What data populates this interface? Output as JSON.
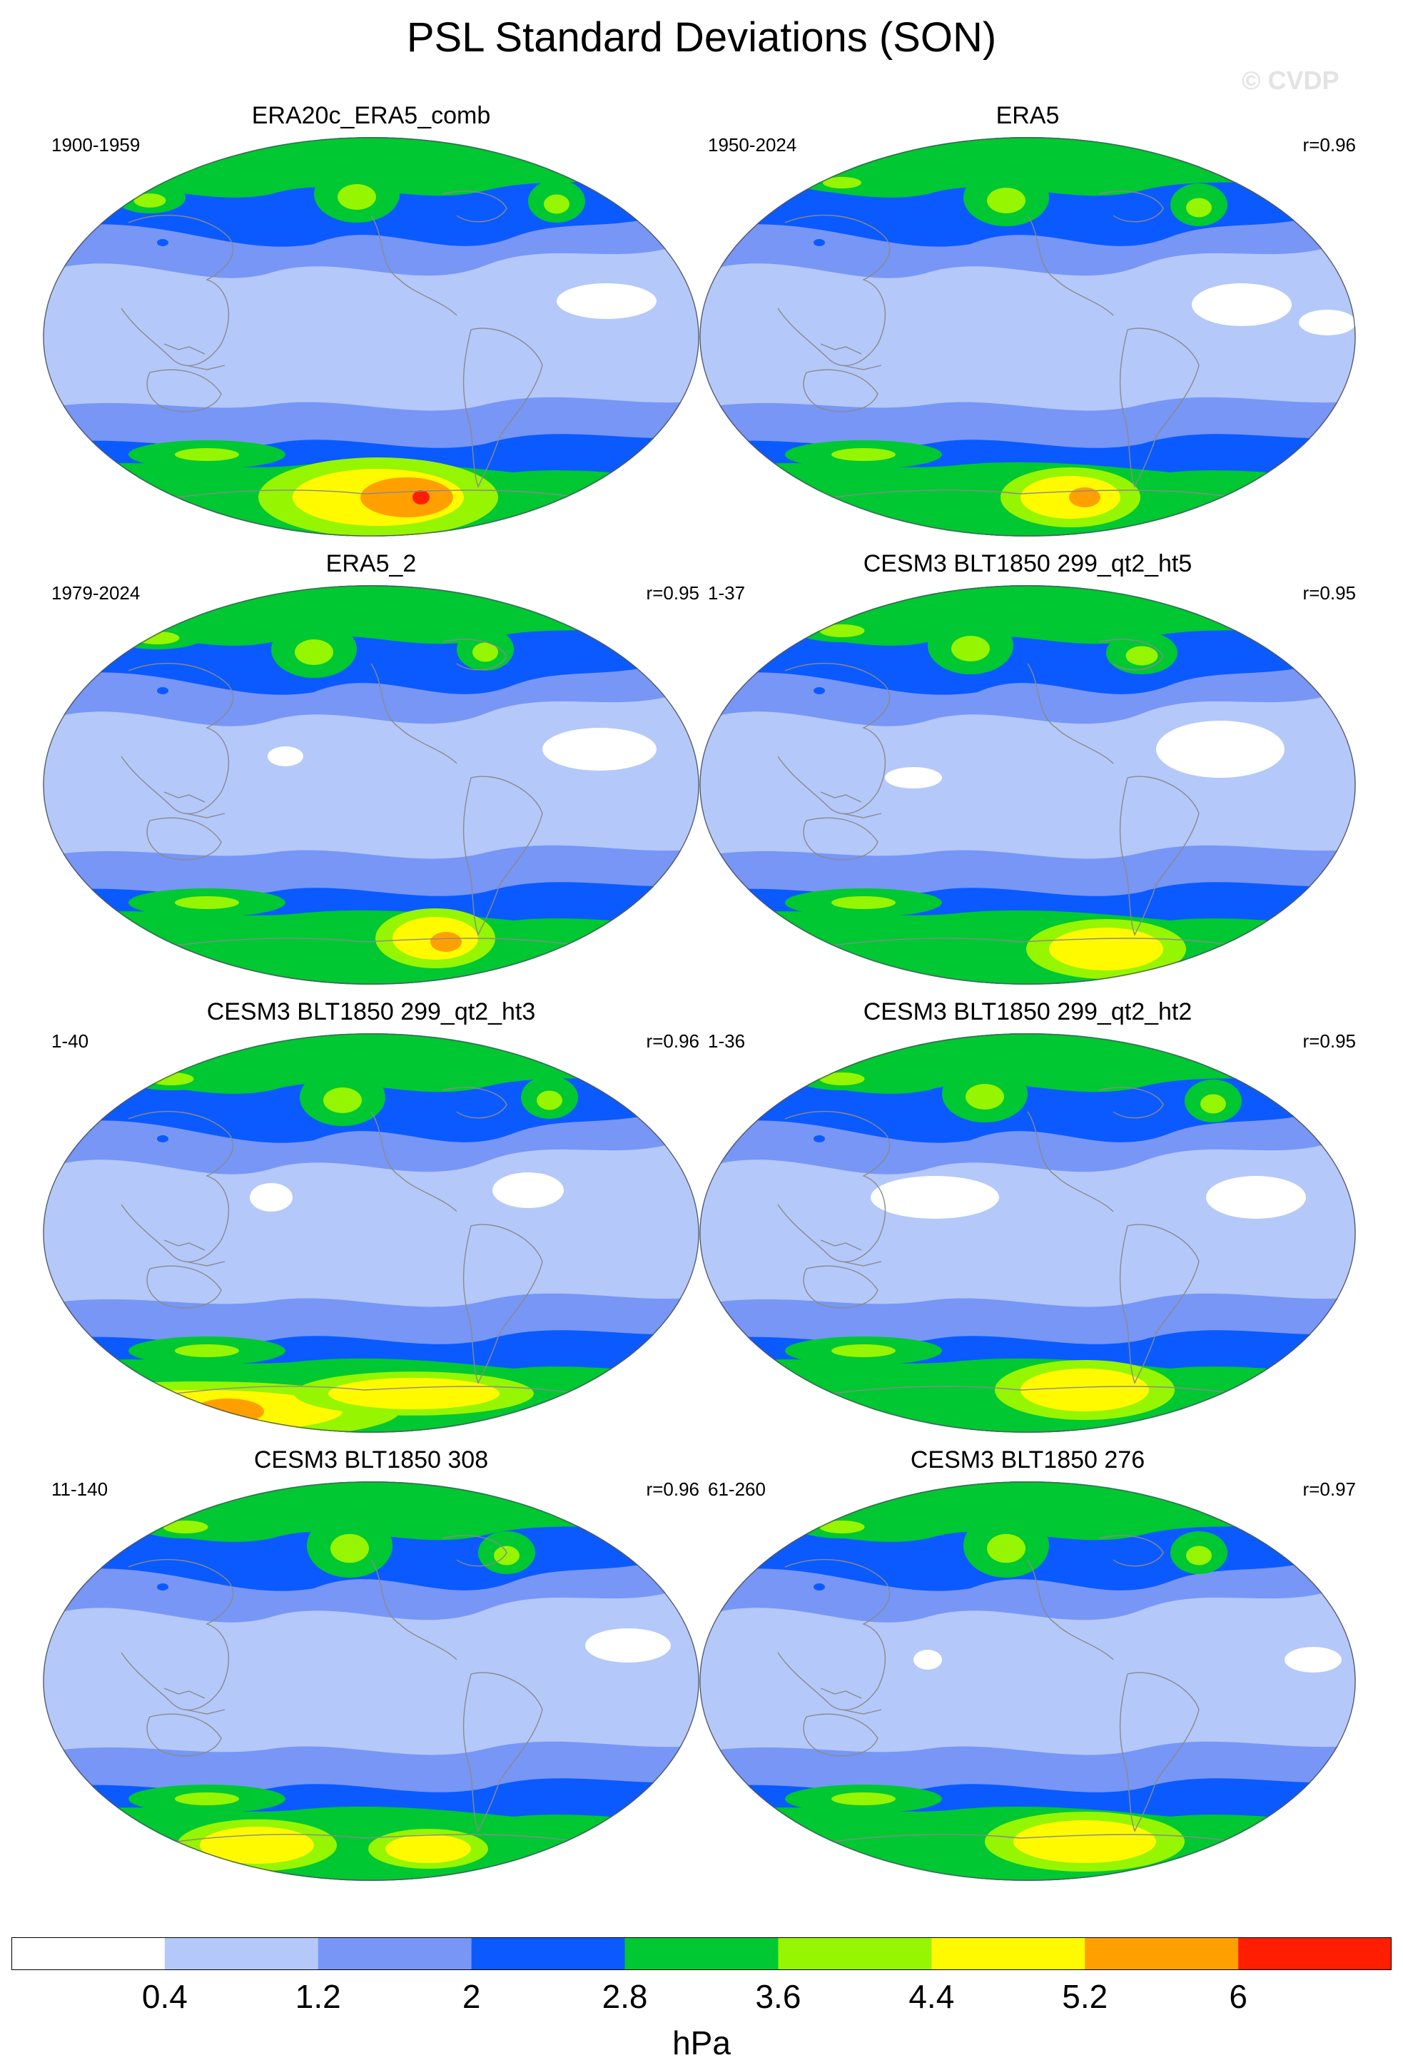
{
  "figure": {
    "title": "PSL Standard Deviations (SON)",
    "watermark": "© CVDP"
  },
  "panels": [
    {
      "title": "ERA20c_ERA5_comb",
      "left_label": "1900-1959",
      "right_label": ""
    },
    {
      "title": "ERA5",
      "left_label": "1950-2024",
      "right_label": "r=0.96"
    },
    {
      "title": "ERA5_2",
      "left_label": "1979-2024",
      "right_label": "r=0.95"
    },
    {
      "title": "CESM3 BLT1850 299_qt2_ht5",
      "left_label": "1-37",
      "right_label": "r=0.95"
    },
    {
      "title": "CESM3 BLT1850 299_qt2_ht3",
      "left_label": "1-40",
      "right_label": "r=0.96"
    },
    {
      "title": "CESM3 BLT1850 299_qt2_ht2",
      "left_label": "1-36",
      "right_label": "r=0.95"
    },
    {
      "title": "CESM3 BLT1850 308",
      "left_label": "11-140",
      "right_label": "r=0.96"
    },
    {
      "title": "CESM3 BLT1850 276",
      "left_label": "61-260",
      "right_label": "r=0.97"
    }
  ],
  "colorbar": {
    "unit": "hPa",
    "labels": [
      "0.4",
      "1.2",
      "2",
      "2.8",
      "3.6",
      "4.4",
      "5.2",
      "6"
    ],
    "colors": [
      "#ffffff",
      "#b4c8fa",
      "#7896f5",
      "#0a5aff",
      "#00c832",
      "#96f500",
      "#fffa00",
      "#ffa000",
      "#ff1e00"
    ]
  }
}
